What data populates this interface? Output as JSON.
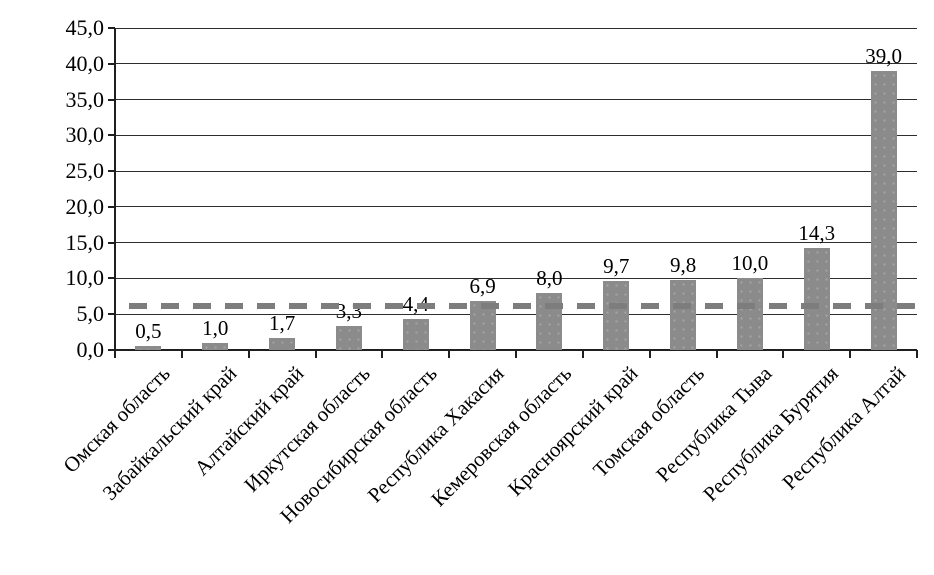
{
  "chart_data": {
    "type": "bar",
    "title": "",
    "xlabel": "",
    "ylabel": "",
    "categories": [
      "Омская область",
      "Забайкальский край",
      "Алтайский край",
      "Иркутская область",
      "Новосибирская область",
      "Республика Хакасия",
      "Кемеровская область",
      "Красноярский край",
      "Томская область",
      "Республика Тыва",
      "Республика Бурятия",
      "Республика Алтай"
    ],
    "values": [
      0.5,
      1.0,
      1.7,
      3.3,
      4.4,
      6.9,
      8.0,
      9.7,
      9.8,
      10.0,
      14.3,
      39.0
    ],
    "data_labels": [
      "0,5",
      "1,0",
      "1,7",
      "3,3",
      "4,4",
      "6,9",
      "8,0",
      "9,7",
      "9,8",
      "10,0",
      "14,3",
      "39,0"
    ],
    "y_tick_labels": [
      "0,0",
      "5,0",
      "10,0",
      "15,0",
      "20,0",
      "25,0",
      "30,0",
      "35,0",
      "40,0",
      "45,0"
    ],
    "y_tick_values": [
      0,
      5,
      10,
      15,
      20,
      25,
      30,
      35,
      40,
      45
    ],
    "ylim": [
      0,
      45
    ],
    "grid": true,
    "legend": "none",
    "bar_color": "#8b8b8b",
    "gridline_color": "#2e2e2e",
    "reference_line": {
      "value": 6.2,
      "style": "dashed",
      "color": "#7d7d7d"
    }
  }
}
